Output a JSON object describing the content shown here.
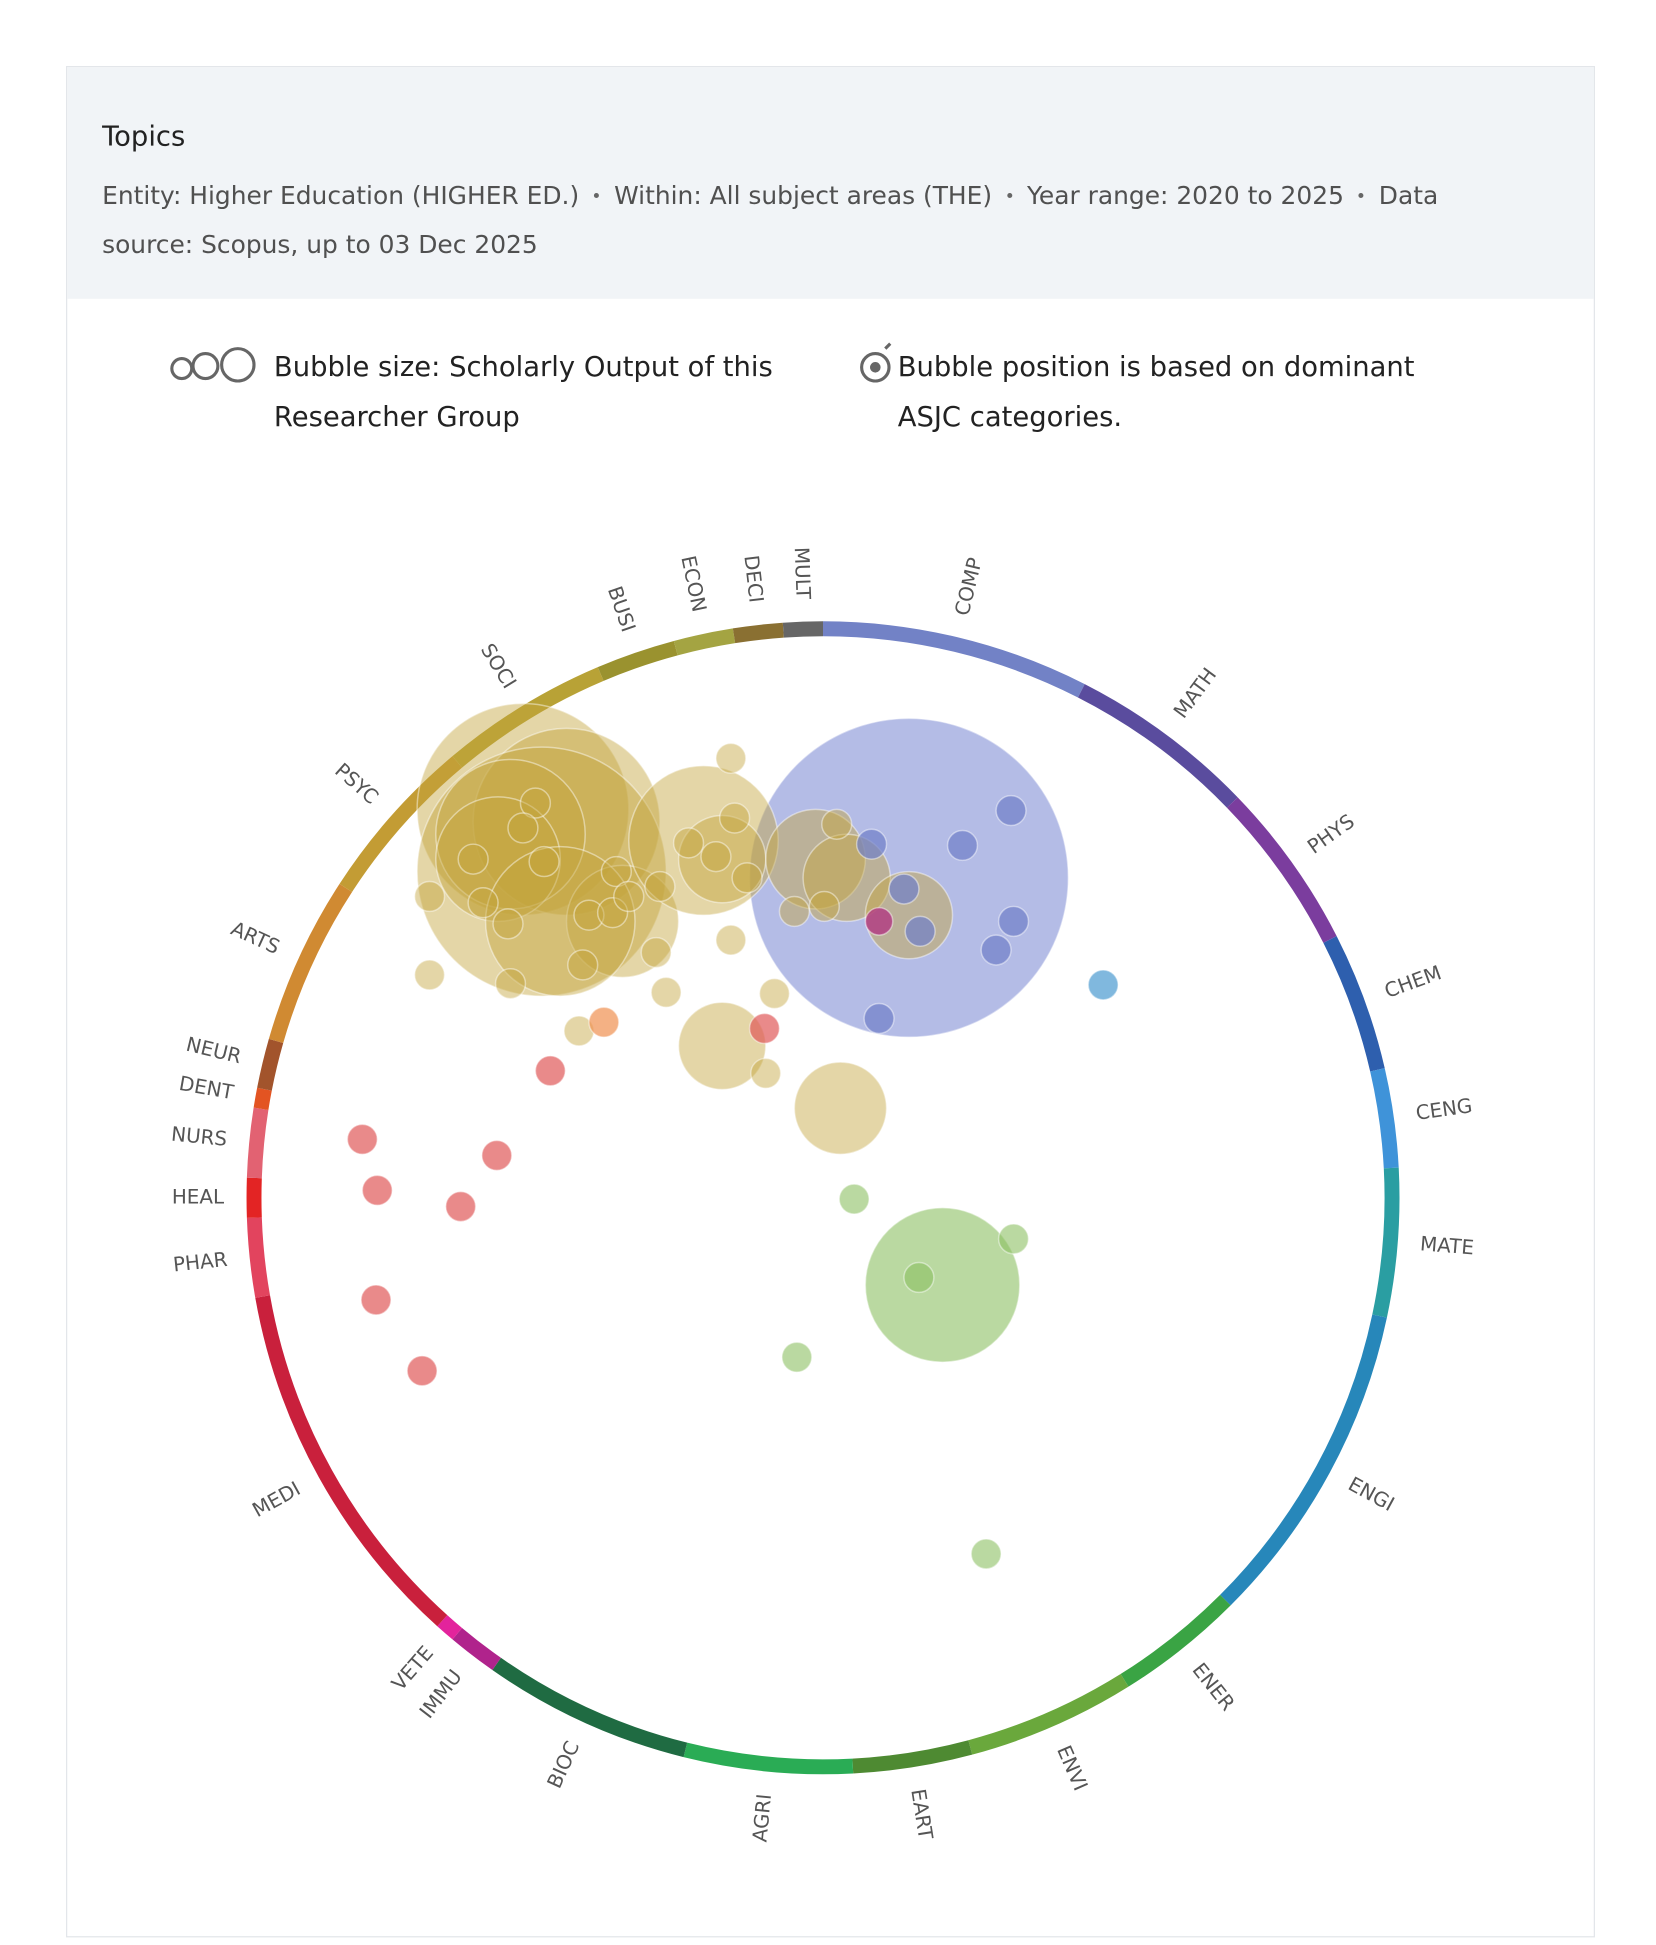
{
  "header": {
    "title": "Topics",
    "filters": [
      "Entity: Higher Education (HIGHER ED.)",
      "Within: All subject areas (THE)",
      "Year range: 2020 to 2025",
      "Data source: Scopus, up to 03 Dec 2025"
    ]
  },
  "legend": {
    "size": "Bubble size:  Scholarly Output of this Researcher Group",
    "position": "Bubble position is based on dominant ASJC categories."
  },
  "chart_data": {
    "type": "wheel",
    "categories": [
      "COMP",
      "MATH",
      "PHYS",
      "CHEM",
      "CENG",
      "MATE",
      "ENGI",
      "ENER",
      "ENVI",
      "EART",
      "AGRI",
      "BIOC",
      "IMMU",
      "VETE",
      "MEDI",
      "PHAR",
      "HEAL",
      "NURS",
      "DENT",
      "NEUR",
      "ARTS",
      "PSYC",
      "SOCI",
      "BUSI",
      "ECON",
      "DECI",
      "MULT"
    ],
    "values": [
      27,
      19,
      17,
      14,
      10,
      15,
      33,
      13,
      17,
      12,
      17,
      21,
      5,
      2,
      38,
      8,
      4,
      7,
      2,
      5,
      17,
      17,
      17,
      8,
      6,
      5,
      4
    ],
    "colors": [
      "#7282c6",
      "#5a4c9e",
      "#7b3d9e",
      "#2e5fae",
      "#3f93d9",
      "#2a9ea2",
      "#2787ba",
      "#3aa444",
      "#6aa83c",
      "#4e8a32",
      "#2aac55",
      "#1f6b42",
      "#b0238c",
      "#e3239c",
      "#c9203c",
      "#e2445e",
      "#e32424",
      "#e26272",
      "#e35422",
      "#a2542c",
      "#d08a32",
      "#c39c34",
      "#b8a236",
      "#9a922f",
      "#a4a442",
      "#8a7032",
      "#666666"
    ],
    "xlim": [
      -457,
      457
    ],
    "ylim": [
      -457,
      457
    ],
    "series": [
      {
        "color": "#8c98d8",
        "opacity": 0.65,
        "x": [
          69
        ],
        "y": [
          257
        ],
        "sizes": [
          128
        ]
      },
      {
        "color": "#c4a43c",
        "opacity": 0.45,
        "x": [
          -241,
          -206,
          -226,
          -251,
          -261,
          -161,
          -96,
          -81,
          -6,
          19,
          69,
          -81,
          14,
          -211,
          -316,
          -316,
          -251,
          -196,
          -126,
          -74,
          -71,
          -74,
          -134,
          -108,
          11,
          -23,
          1,
          -39,
          -46,
          -231,
          -241,
          -273,
          -281,
          -224,
          -166,
          -188,
          -169,
          -193,
          -156,
          -131,
          -253,
          -86,
          -61
        ],
        "y": [
          312,
          302,
          262,
          292,
          272,
          222,
          287,
          272,
          272,
          257,
          227,
          122,
          72,
          222,
          242,
          179,
          172,
          134,
          165,
          353,
          305,
          207,
          197,
          285,
          300,
          230,
          234,
          164,
          100,
          317,
          297,
          237,
          272,
          270,
          262,
          227,
          229,
          187,
          242,
          250,
          220,
          274,
          257
        ],
        "sizes": [
          85,
          75,
          100,
          60,
          50,
          45,
          60,
          35,
          40,
          35,
          35,
          35,
          37,
          60,
          12,
          12,
          12,
          12,
          12,
          12,
          12,
          12,
          12,
          12,
          12,
          12,
          12,
          12,
          12,
          12,
          12,
          12,
          12,
          12,
          12,
          12,
          12,
          12,
          12,
          12,
          12,
          12,
          12
        ]
      },
      {
        "color": "#6f7fc8",
        "opacity": 0.7,
        "x": [
          151,
          112,
          39,
          65,
          78,
          139,
          153,
          45
        ],
        "y": [
          311,
          283,
          284,
          248,
          214,
          199,
          222,
          144
        ],
        "sizes": [
          12,
          12,
          12,
          12,
          12,
          12,
          12,
          12
        ]
      },
      {
        "color": "#4a9ad0",
        "opacity": 0.7,
        "x": [
          225
        ],
        "y": [
          171
        ],
        "sizes": [
          12
        ]
      },
      {
        "color": "#b03080",
        "opacity": 0.75,
        "x": [
          45
        ],
        "y": [
          222
        ],
        "sizes": [
          11
        ]
      },
      {
        "color": "#e05858",
        "opacity": 0.7,
        "x": [
          -370,
          -358,
          -262,
          -291,
          -359,
          -322,
          -219,
          -47
        ],
        "y": [
          47,
          6,
          34,
          -7,
          -82,
          -139,
          102,
          136
        ],
        "sizes": [
          12,
          12,
          12,
          12,
          12,
          12,
          12,
          12
        ]
      },
      {
        "color": "#f09050",
        "opacity": 0.7,
        "x": [
          -176
        ],
        "y": [
          141
        ],
        "sizes": [
          12
        ]
      },
      {
        "color": "#8cc062",
        "opacity": 0.6,
        "x": [
          96,
          77,
          153,
          25,
          -21,
          131
        ],
        "y": [
          -70,
          -64,
          -33,
          -1,
          -128,
          -286
        ],
        "sizes": [
          62,
          12,
          12,
          12,
          12,
          12
        ]
      }
    ]
  }
}
